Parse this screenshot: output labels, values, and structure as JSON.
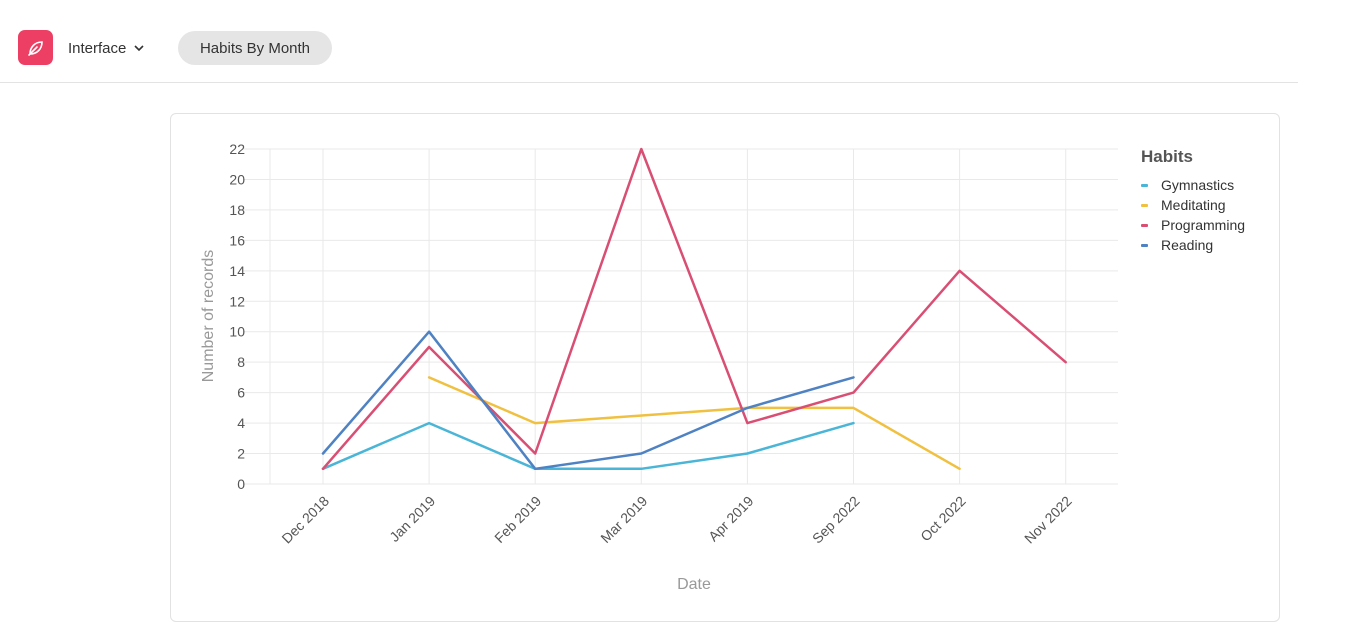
{
  "header": {
    "logo_icon": "leaf-icon",
    "logo_color": "#ec3f63",
    "interface_label": "Interface",
    "tab_label": "Habits By Month"
  },
  "chart_data": {
    "type": "line",
    "title": "",
    "xlabel": "Date",
    "ylabel": "Number of records",
    "ylim": [
      0,
      22
    ],
    "yticks": [
      0,
      2,
      4,
      6,
      8,
      10,
      12,
      14,
      16,
      18,
      20,
      22
    ],
    "grid": true,
    "legend_title": "Habits",
    "legend_position": "right",
    "categories": [
      "Dec 2018",
      "Jan 2019",
      "Feb 2019",
      "Mar 2019",
      "Apr 2019",
      "Sep 2022",
      "Oct 2022",
      "Nov 2022"
    ],
    "series": [
      {
        "name": "Gymnastics",
        "color": "#4ab5d6",
        "values": [
          1,
          4,
          1,
          1,
          2,
          4,
          null,
          null
        ]
      },
      {
        "name": "Meditating",
        "color": "#f0c040",
        "values": [
          null,
          7,
          4,
          null,
          5,
          5,
          1,
          null
        ]
      },
      {
        "name": "Programming",
        "color": "#d94f74",
        "values": [
          1,
          9,
          2,
          22,
          4,
          6,
          14,
          8
        ]
      },
      {
        "name": "Reading",
        "color": "#4f82c2",
        "values": [
          2,
          10,
          1,
          2,
          5,
          7,
          null,
          null
        ]
      }
    ]
  }
}
